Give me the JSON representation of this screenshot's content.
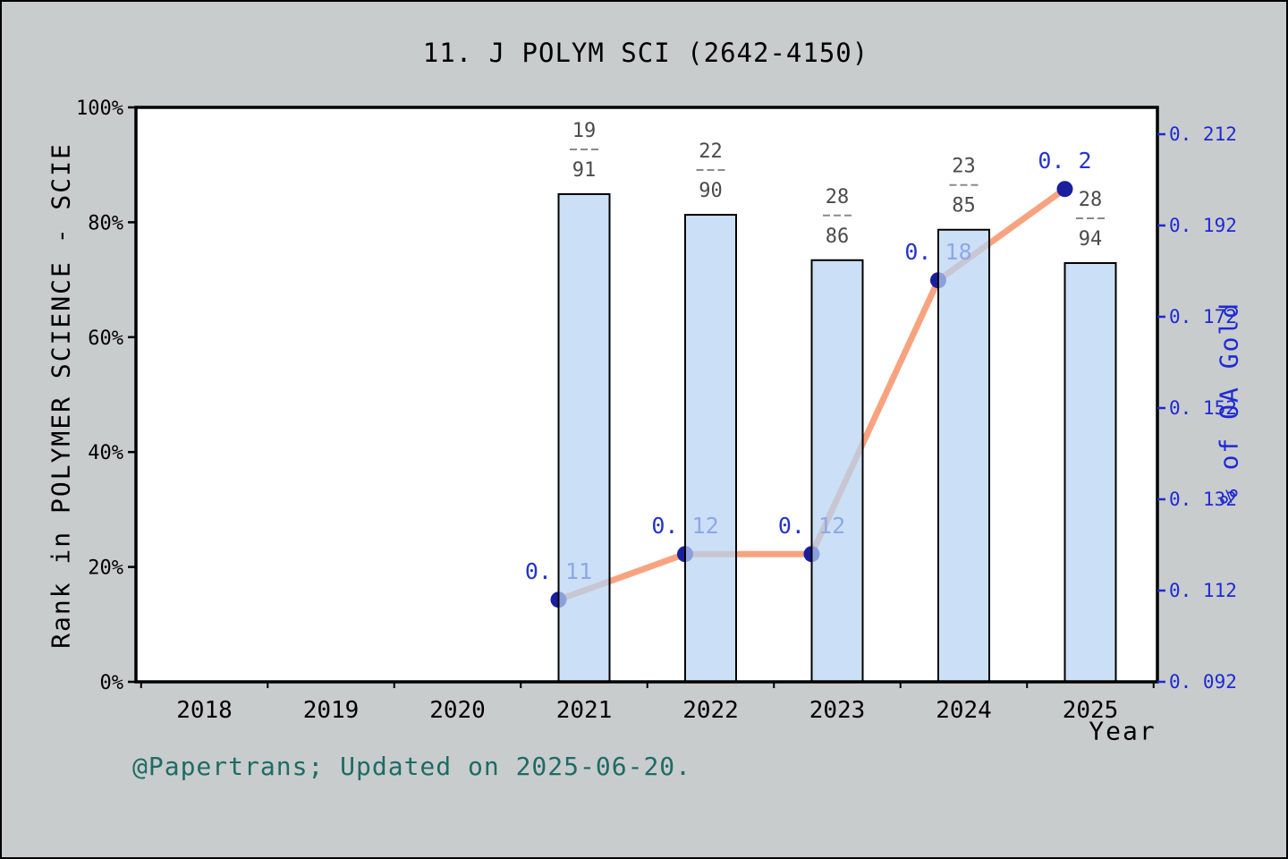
{
  "title": "11. J POLYM SCI (2642-4150)",
  "footer": "@Papertrans; Updated on 2025-06-20.",
  "axes": {
    "x_label": "Year",
    "y_left_label": "Rank in POLYMER SCIENCE - SCIE",
    "y_right_label": "% of OA Gold",
    "x_tick_labels": [
      "2018",
      "2019",
      "2020",
      "2021",
      "2022",
      "2023",
      "2024",
      "2025"
    ],
    "y_left_tick_labels": [
      "0%",
      "20%",
      "40%",
      "60%",
      "80%",
      "100%"
    ],
    "y_right_tick_labels": [
      "0. 092",
      "0. 112",
      "0. 132",
      "0. 152",
      "0. 172",
      "0. 192",
      "0. 212"
    ]
  },
  "chart_data": {
    "type": "bar+line",
    "x": [
      2021,
      2022,
      2023,
      2024,
      2025
    ],
    "x_axis_years": [
      2018,
      2019,
      2020,
      2021,
      2022,
      2023,
      2024,
      2025
    ],
    "series": [
      {
        "name": "Rank in POLYMER SCIENCE - SCIE",
        "type": "bar",
        "axis": "left",
        "unit": "percentile %",
        "values": [
          84.9,
          81.3,
          73.4,
          78.7,
          72.9
        ],
        "rank_fractions": [
          {
            "num": "19",
            "den": "91"
          },
          {
            "num": "22",
            "den": "90"
          },
          {
            "num": "28",
            "den": "86"
          },
          {
            "num": "23",
            "den": "85"
          },
          {
            "num": "28",
            "den": "94"
          }
        ]
      },
      {
        "name": "% of OA Gold",
        "type": "line",
        "axis": "right",
        "values": [
          0.11,
          0.12,
          0.12,
          0.18,
          0.2
        ],
        "point_labels": [
          "0. 11",
          "0. 12",
          "0. 12",
          "0. 18",
          "0. 2"
        ]
      }
    ],
    "y_left_range": [
      0,
      100
    ],
    "y_right_tick_values": [
      0.092,
      0.112,
      0.132,
      0.152,
      0.172,
      0.192,
      0.212
    ],
    "grid": false,
    "legend": false
  },
  "colors": {
    "figure_bg": "#c9cccd",
    "plot_bg": "#ffffff",
    "bar_fill": "#b7d4f2",
    "bar_fill_opacity": 0.72,
    "bar_edge": "#000000",
    "line": "#f8a380",
    "marker": "#1a1f9e",
    "point_label": "#2433cc",
    "right_axis": "#1e2ad2",
    "tick_text": "#000000",
    "fraction_text": "#4b4b4b",
    "fraction_dash": "#8a8a8a",
    "footer": "#1e6b66"
  }
}
